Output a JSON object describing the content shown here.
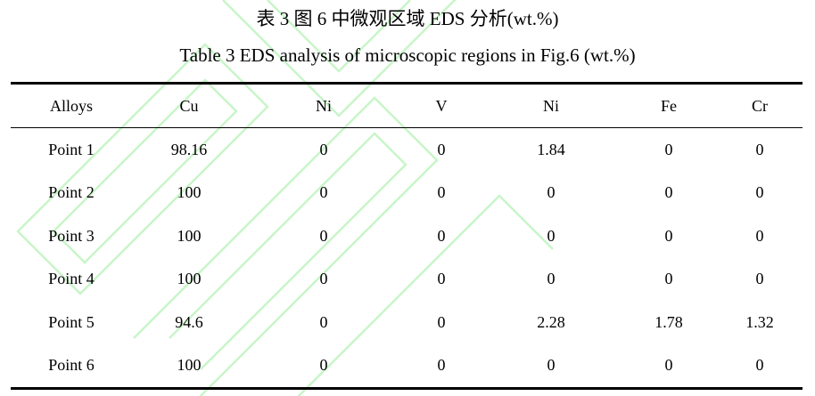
{
  "title_cn": "表 3  图 6 中微观区域 EDS 分析(wt.%)",
  "title_en": "Table 3 EDS analysis of microscopic regions in Fig.6 (wt.%)",
  "watermark_color": "#c8f5c8",
  "table": {
    "headers": [
      "Alloys",
      "Cu",
      "Ni",
      "V",
      "Ni",
      "Fe",
      "Cr"
    ],
    "rows": [
      [
        "Point 1",
        "98.16",
        "0",
        "0",
        "1.84",
        "0",
        "0"
      ],
      [
        "Point 2",
        "100",
        "0",
        "0",
        "0",
        "0",
        "0"
      ],
      [
        "Point 3",
        "100",
        "0",
        "0",
        "0",
        "0",
        "0"
      ],
      [
        "Point 4",
        "100",
        "0",
        "0",
        "0",
        "0",
        "0"
      ],
      [
        "Point 5",
        "94.6",
        "0",
        "0",
        "2.28",
        "1.78",
        "1.32"
      ],
      [
        "Point 6",
        "100",
        "0",
        "0",
        "0",
        "0",
        "0"
      ]
    ]
  }
}
